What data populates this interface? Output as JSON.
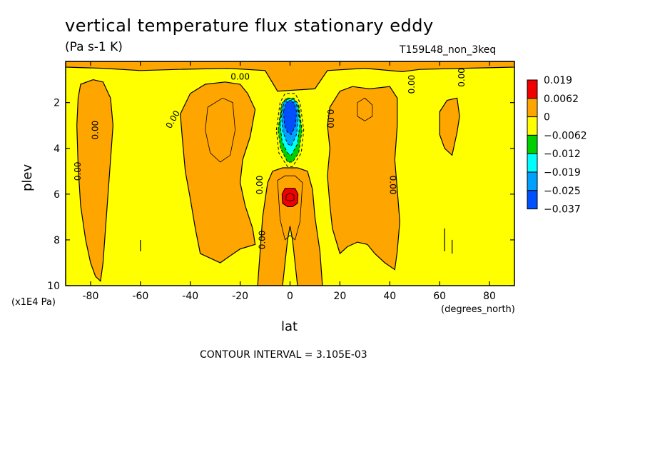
{
  "chart_data": {
    "type": "heatmap",
    "title": "vertical temperature flux stationary eddy",
    "units": "(Pa s-1 K)",
    "run_id": "T159L48_non_3keq",
    "xlabel": "lat",
    "x_units": "(degrees_north)",
    "ylabel": "plev",
    "y_scale_note": "(x1E4 Pa)",
    "xlim": [
      -90,
      90
    ],
    "ylim": [
      10,
      0.2
    ],
    "x_ticks": [
      "-80",
      "-60",
      "-40",
      "-20",
      "0",
      "20",
      "40",
      "60",
      "80"
    ],
    "x_tick_values": [
      -80,
      -60,
      -40,
      -20,
      0,
      20,
      40,
      60,
      80
    ],
    "y_ticks": [
      "2",
      "4",
      "6",
      "8",
      "10"
    ],
    "y_tick_values": [
      2,
      4,
      6,
      8,
      10
    ],
    "contour_interval_text": "CONTOUR INTERVAL = 3.105E-03",
    "contour_labels": [
      "0.00",
      "0.00",
      "0.00",
      "0.00",
      "0.00",
      "0.00",
      "0.00",
      "0.00",
      "0.00",
      "0.00"
    ],
    "legend": {
      "labels": [
        "0.019",
        "0.0062",
        "0",
        "−0.0062",
        "−0.012",
        "−0.019",
        "−0.025",
        "−0.037"
      ],
      "colors": [
        "#f00000",
        "#ffa500",
        "#ffff00",
        "#00d000",
        "#00ffff",
        "#00a0ff",
        "#0050ff"
      ]
    },
    "regions": [
      {
        "name": "southern-polar-band",
        "sign": "positive",
        "lat": [
          -84,
          -70
        ],
        "plev": [
          1.0,
          9.8
        ]
      },
      {
        "name": "southern-midlat-band",
        "sign": "positive",
        "lat": [
          -45,
          -14
        ],
        "plev": [
          1.2,
          9.0
        ]
      },
      {
        "name": "equatorial-lower-lobe",
        "sign": "positive",
        "lat": [
          -14,
          13
        ],
        "plev": [
          4.8,
          10.0
        ]
      },
      {
        "name": "equatorial-upper-negative",
        "sign": "negative",
        "lat": [
          -6,
          6
        ],
        "plev": [
          1.6,
          4.8
        ],
        "min_value": -0.037
      },
      {
        "name": "equatorial-lower-max",
        "sign": "positive",
        "lat": [
          -3,
          3
        ],
        "plev": [
          5.7,
          6.5
        ],
        "max_value": 0.019
      },
      {
        "name": "northern-midlat-band",
        "sign": "positive",
        "lat": [
          14,
          44
        ],
        "plev": [
          1.3,
          9.3
        ]
      },
      {
        "name": "northern-polar-patch",
        "sign": "positive",
        "lat": [
          60,
          68
        ],
        "plev": [
          1.8,
          4.3
        ]
      },
      {
        "name": "top-layer",
        "sign": "positive",
        "lat": [
          -90,
          90
        ],
        "plev": [
          0.2,
          0.5
        ]
      }
    ]
  },
  "colors": {
    "background": "#ffffff",
    "positive_fill": "#ffa500",
    "zero_fill": "#ffff00",
    "max_fill": "#f00000",
    "frame": "#000000"
  }
}
